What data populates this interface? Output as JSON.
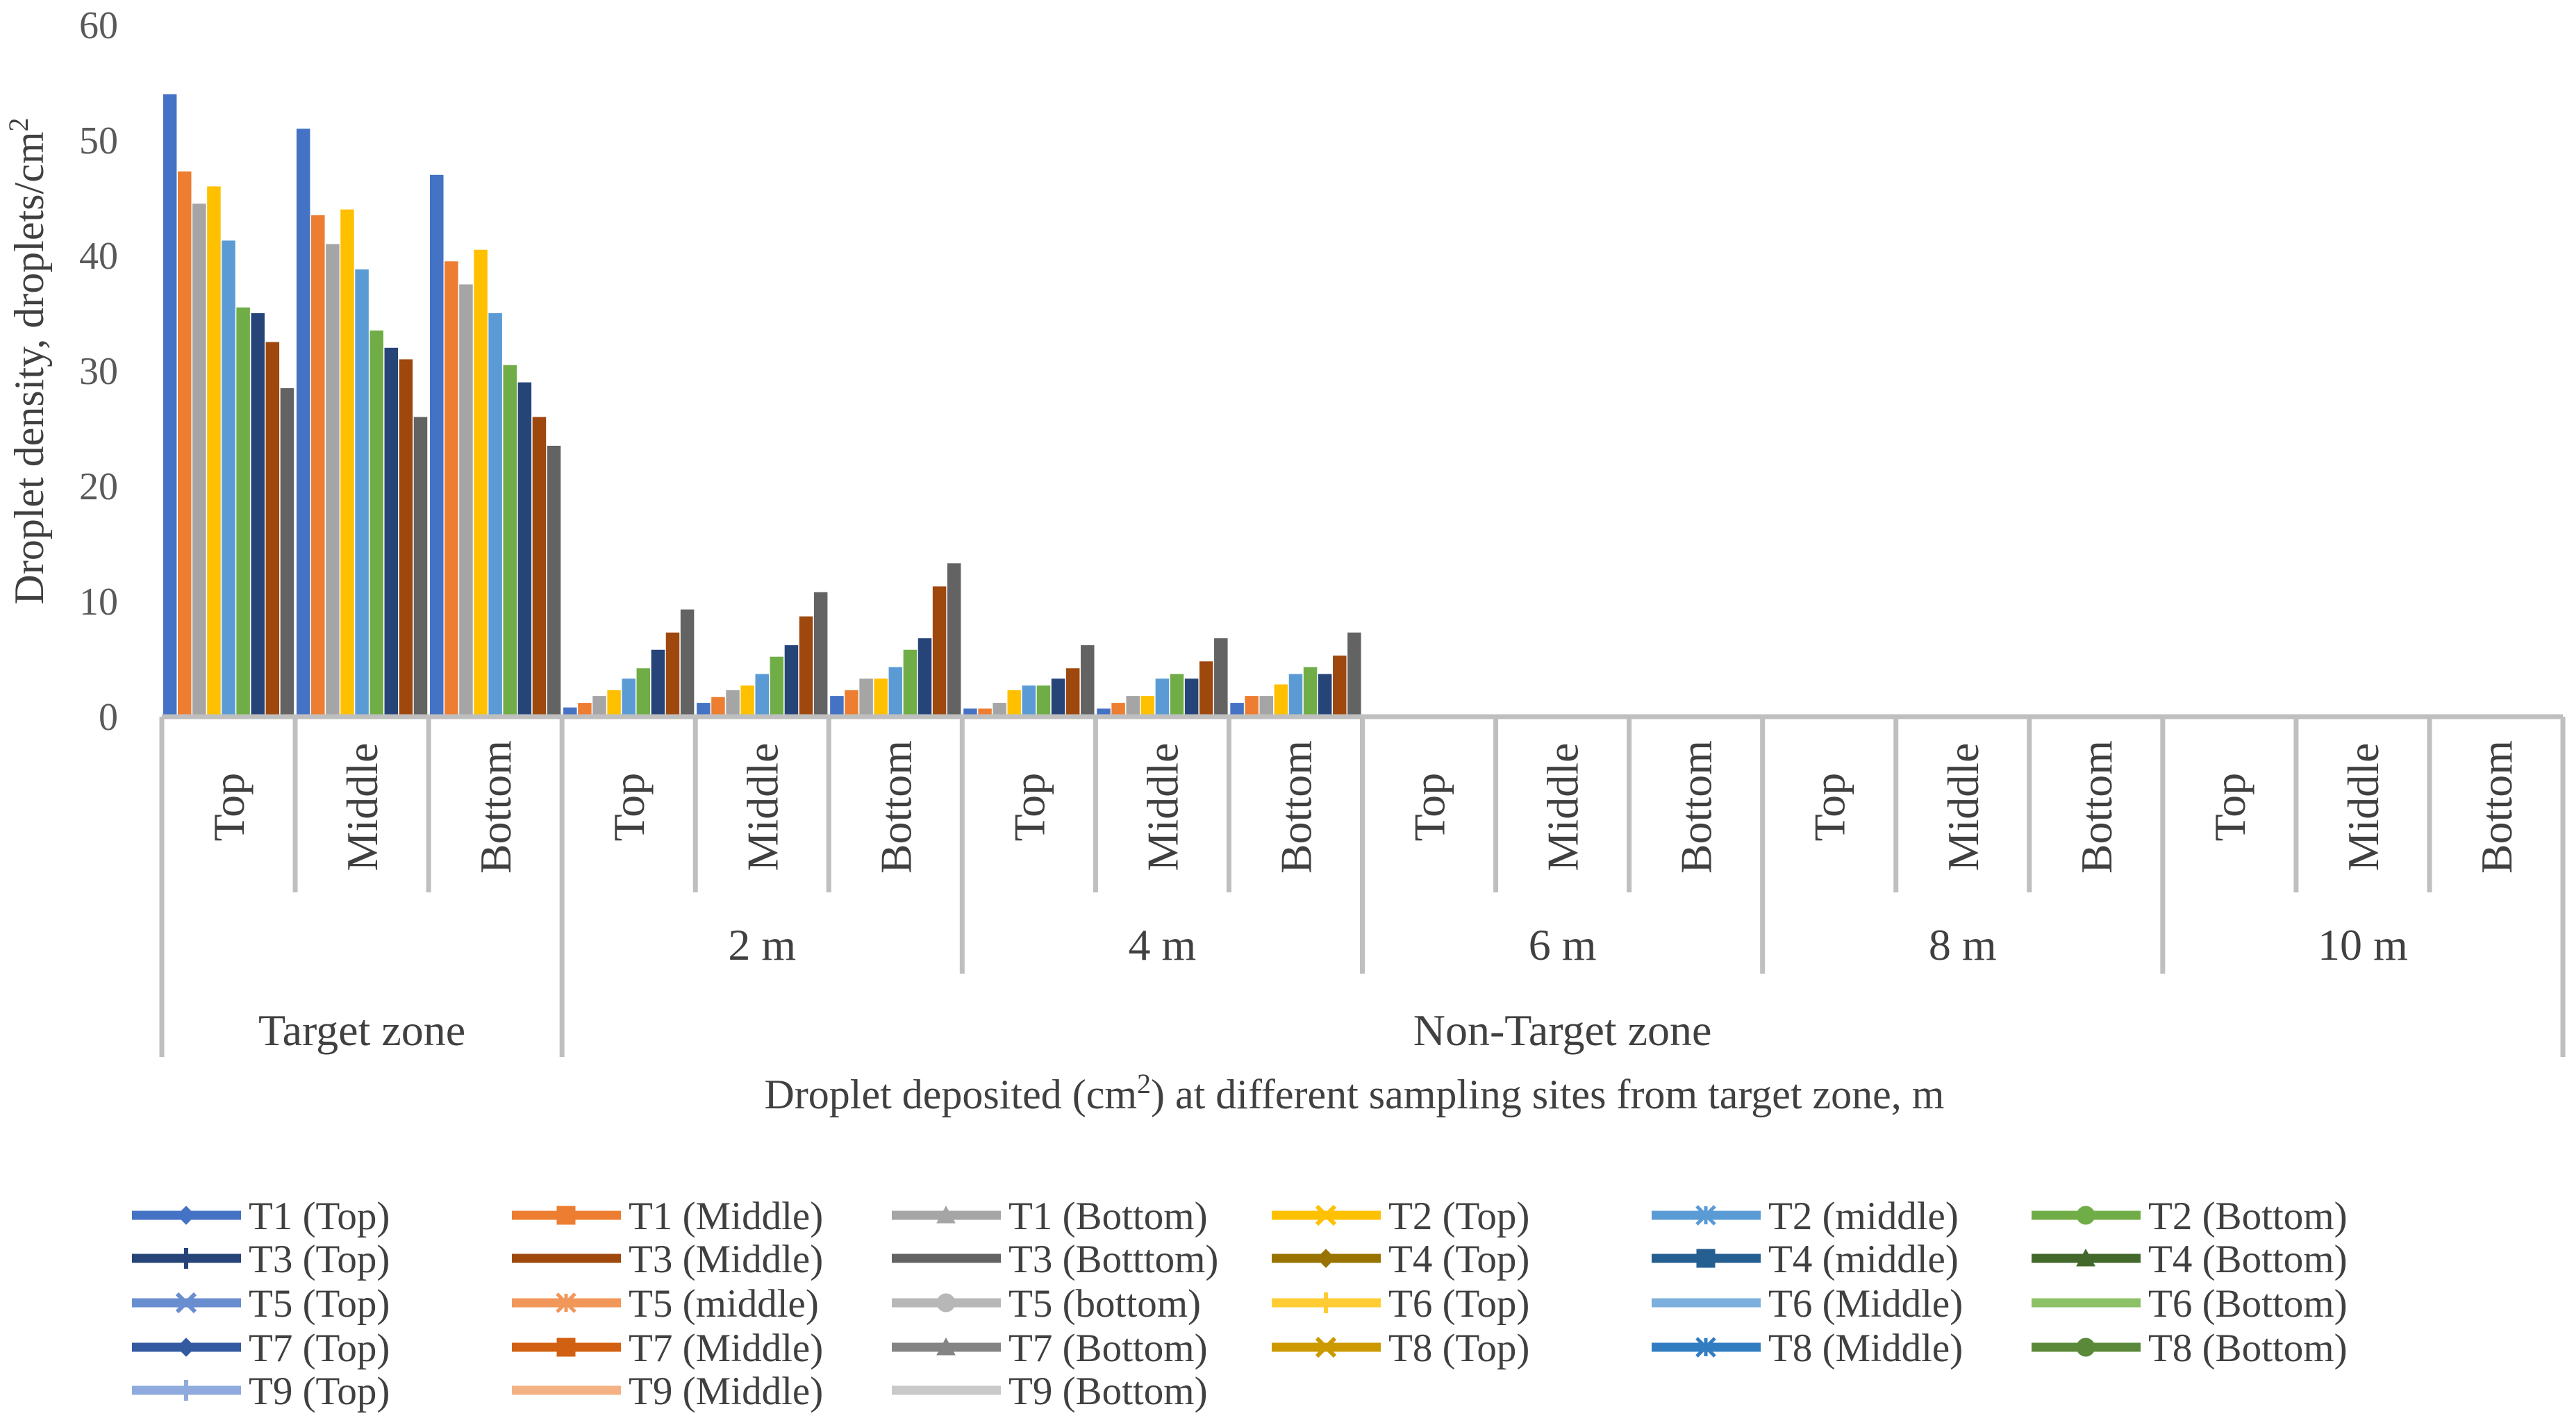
{
  "chart_data": {
    "type": "bar",
    "title": "",
    "ylabel": "Droplet density, droplets/cm²",
    "xlabel": "Droplet deposited (cm²) at different sampling sites from target zone, m",
    "ylim": [
      0,
      60
    ],
    "yticks": [
      0,
      10,
      20,
      30,
      40,
      50,
      60
    ],
    "grid": false,
    "legend_position": "bottom",
    "groups": [
      {
        "zone": "Target zone",
        "label": "",
        "positions": [
          "Top",
          "Middle",
          "Bottom"
        ]
      },
      {
        "zone": "Non-Target zone",
        "label": "2 m",
        "positions": [
          "Top",
          "Middle",
          "Bottom"
        ]
      },
      {
        "zone": "Non-Target zone",
        "label": "4 m",
        "positions": [
          "Top",
          "Middle",
          "Bottom"
        ]
      },
      {
        "zone": "Non-Target zone",
        "label": "6 m",
        "positions": [
          "Top",
          "Middle",
          "Bottom"
        ]
      },
      {
        "zone": "Non-Target zone",
        "label": "8 m",
        "positions": [
          "Top",
          "Middle",
          "Bottom"
        ]
      },
      {
        "zone": "Non-Target zone",
        "label": "10 m",
        "positions": [
          "Top",
          "Middle",
          "Bottom"
        ]
      }
    ],
    "zones": [
      {
        "label": "Target zone",
        "group_count": 1
      },
      {
        "label": "Non-Target zone",
        "group_count": 5
      }
    ],
    "bars_per_category": [
      "#4472C4",
      "#ED7D31",
      "#A5A5A5",
      "#FFC000",
      "#5B9BD5",
      "#70AD47",
      "#264478",
      "#9E480E",
      "#636363"
    ],
    "categories": [
      "Target zone Top",
      "Target zone Middle",
      "Target zone Bottom",
      "2 m Top",
      "2 m Middle",
      "2 m Bottom",
      "4 m Top",
      "4 m Middle",
      "4 m Bottom",
      "6 m Top",
      "6 m Middle",
      "6 m Bottom",
      "8 m Top",
      "8 m Middle",
      "8 m Bottom",
      "10 m Top",
      "10 m Middle",
      "10 m Bottom"
    ],
    "values": [
      [
        54.0,
        47.3,
        44.5,
        46.0,
        41.3,
        35.5,
        35.0,
        32.5,
        28.5
      ],
      [
        51.0,
        43.5,
        41.0,
        44.0,
        38.8,
        33.5,
        32.0,
        31.0,
        26.0
      ],
      [
        47.0,
        39.5,
        37.5,
        40.5,
        35.0,
        30.5,
        29.0,
        26.0,
        23.5
      ],
      [
        0.8,
        1.2,
        1.8,
        2.3,
        3.3,
        4.2,
        5.8,
        7.3,
        9.3
      ],
      [
        1.2,
        1.7,
        2.3,
        2.7,
        3.7,
        5.2,
        6.2,
        8.7,
        10.8
      ],
      [
        1.8,
        2.3,
        3.3,
        3.3,
        4.3,
        5.8,
        6.8,
        11.3,
        13.3
      ],
      [
        0.7,
        0.7,
        1.2,
        2.3,
        2.7,
        2.7,
        3.3,
        4.2,
        6.2
      ],
      [
        0.7,
        1.2,
        1.8,
        1.8,
        3.3,
        3.7,
        3.3,
        4.8,
        6.8
      ],
      [
        1.2,
        1.8,
        1.8,
        2.8,
        3.7,
        4.3,
        3.7,
        5.3,
        7.3
      ],
      [
        0,
        0,
        0,
        0,
        0,
        0,
        0,
        0,
        0
      ],
      [
        0,
        0,
        0,
        0,
        0,
        0,
        0,
        0,
        0
      ],
      [
        0,
        0,
        0,
        0,
        0,
        0,
        0,
        0,
        0
      ],
      [
        0,
        0,
        0,
        0,
        0,
        0,
        0,
        0,
        0
      ],
      [
        0,
        0,
        0,
        0,
        0,
        0,
        0,
        0,
        0
      ],
      [
        0,
        0,
        0,
        0,
        0,
        0,
        0,
        0,
        0
      ],
      [
        0,
        0,
        0,
        0,
        0,
        0,
        0,
        0,
        0
      ],
      [
        0,
        0,
        0,
        0,
        0,
        0,
        0,
        0,
        0
      ],
      [
        0,
        0,
        0,
        0,
        0,
        0,
        0,
        0,
        0
      ]
    ],
    "series": [
      {
        "name": "T1 (Top)",
        "color": "#4472C4",
        "marker": "diamond"
      },
      {
        "name": "T1 (Middle)",
        "color": "#ED7D31",
        "marker": "square"
      },
      {
        "name": "T1 (Bottom)",
        "color": "#A5A5A5",
        "marker": "triangle"
      },
      {
        "name": "T2 (Top)",
        "color": "#FFC000",
        "marker": "x"
      },
      {
        "name": "T2 (middle)",
        "color": "#5B9BD5",
        "marker": "asterisk"
      },
      {
        "name": "T2 (Bottom)",
        "color": "#70AD47",
        "marker": "circle"
      },
      {
        "name": "T3 (Top)",
        "color": "#264478",
        "marker": "plus"
      },
      {
        "name": "T3 (Middle)",
        "color": "#9E480E",
        "marker": "dash"
      },
      {
        "name": "T3 (Botttom)",
        "color": "#636363",
        "marker": "dash"
      },
      {
        "name": "T4 (Top)",
        "color": "#997300",
        "marker": "diamond"
      },
      {
        "name": "T4 (middle)",
        "color": "#255E91",
        "marker": "square"
      },
      {
        "name": "T4 (Bottom)",
        "color": "#43682B",
        "marker": "triangle"
      },
      {
        "name": "T5 (Top)",
        "color": "#698ED0",
        "marker": "x"
      },
      {
        "name": "T5 (middle)",
        "color": "#F1975A",
        "marker": "asterisk"
      },
      {
        "name": "T5 (bottom)",
        "color": "#B7B7B7",
        "marker": "circle"
      },
      {
        "name": "T6 (Top)",
        "color": "#FFCD33",
        "marker": "plus"
      },
      {
        "name": "T6 (Middle)",
        "color": "#7CAFDD",
        "marker": "dash"
      },
      {
        "name": "T6 (Bottom)",
        "color": "#8CC168",
        "marker": "dash"
      },
      {
        "name": "T7 (Top)",
        "color": "#335AA1",
        "marker": "diamond"
      },
      {
        "name": "T7 (Middle)",
        "color": "#D26012",
        "marker": "square"
      },
      {
        "name": "T7 (Bottom)",
        "color": "#848484",
        "marker": "triangle"
      },
      {
        "name": "T8 (Top)",
        "color": "#CC9A00",
        "marker": "x"
      },
      {
        "name": "T8 (Middle)",
        "color": "#327DC2",
        "marker": "asterisk"
      },
      {
        "name": "T8 (Bottom)",
        "color": "#5A8A39",
        "marker": "circle"
      },
      {
        "name": "T9 (Top)",
        "color": "#8FAADC",
        "marker": "plus"
      },
      {
        "name": "T9 (Middle)",
        "color": "#F4B183",
        "marker": "dash"
      },
      {
        "name": "T9 (Bottom)",
        "color": "#C9C9C9",
        "marker": "dash"
      }
    ]
  }
}
